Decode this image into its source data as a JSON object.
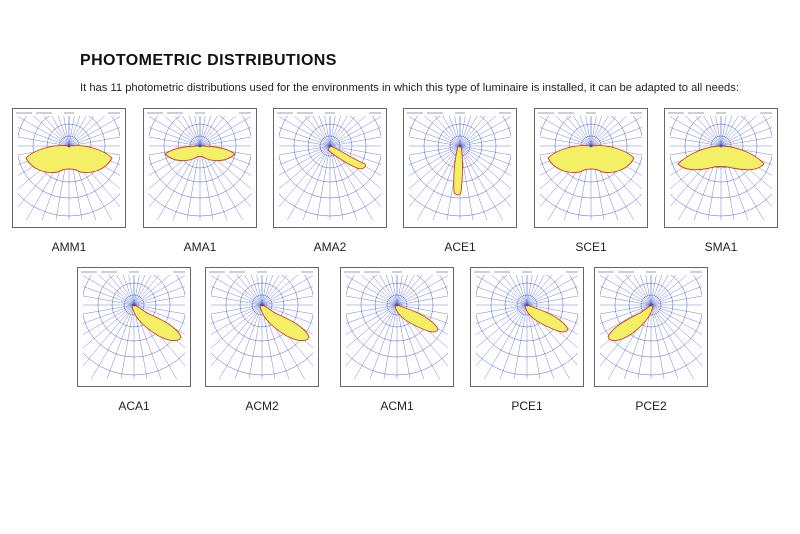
{
  "header": {
    "title": "PHOTOMETRIC DISTRIBUTIONS",
    "subtitle": "It has 11 photometric distributions used for the environments in which this type of luminaire is installed, it can be adapted to all needs:"
  },
  "colors": {
    "grid": "#3b4fc9",
    "fill": "#f4f066",
    "outline": "#d23b2b",
    "frame": "#666666"
  },
  "diagrams": [
    {
      "label": "AMM1",
      "shape": "wide-flat"
    },
    {
      "label": "AMA1",
      "shape": "wings"
    },
    {
      "label": "AMA2",
      "shape": "lobe-right-narrow"
    },
    {
      "label": "ACE1",
      "shape": "spike-down"
    },
    {
      "label": "SCE1",
      "shape": "wide-flat"
    },
    {
      "label": "SMA1",
      "shape": "wide-deep"
    },
    {
      "label": "ACA1",
      "shape": "lobe-right-down"
    },
    {
      "label": "ACM2",
      "shape": "lobe-right-down"
    },
    {
      "label": "ACM1",
      "shape": "lobe-right-mid"
    },
    {
      "label": "PCE1",
      "shape": "lobe-right-mid"
    },
    {
      "label": "PCE2",
      "shape": "lobe-left-down"
    }
  ]
}
